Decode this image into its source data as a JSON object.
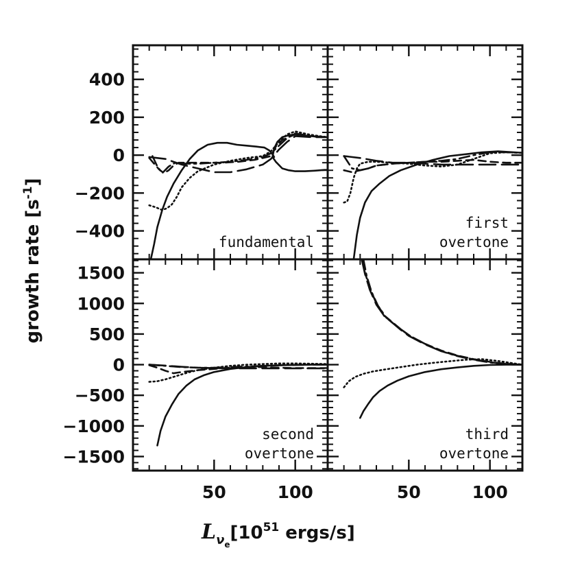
{
  "figure": {
    "ylabel_main": "growth rate ",
    "ylabel_unit": "[s",
    "ylabel_sup": "-1",
    "ylabel_close": "]",
    "xlabel_sym": "L",
    "xlabel_sub": "ν",
    "xlabel_subsub": "e",
    "xlabel_bracket": "[10",
    "xlabel_sup": "51",
    "xlabel_unit": " ergs/s]"
  },
  "chart_data": [
    {
      "type": "line",
      "title": "fundamental",
      "panel": "top-left",
      "xlim": [
        0,
        120
      ],
      "ylim": [
        -550,
        580
      ],
      "yticks": [
        400,
        200,
        0,
        -200,
        -400
      ],
      "ytick_labels": [
        "400",
        "200",
        "0",
        "−200",
        "−400"
      ],
      "xticks": [
        50,
        100
      ],
      "xtick_labels": [],
      "label_lines": [
        "fundamental"
      ],
      "series": [
        {
          "name": "solid",
          "style": "solid",
          "x": [
            11,
            13,
            15,
            18,
            21,
            25,
            30,
            35,
            40,
            46,
            52,
            58,
            64,
            70,
            76,
            81,
            84,
            86,
            87
          ],
          "y": [
            -550,
            -470,
            -380,
            -290,
            -220,
            -150,
            -80,
            -20,
            25,
            55,
            65,
            65,
            55,
            50,
            45,
            40,
            25,
            5,
            -10
          ]
        },
        {
          "name": "solid-branch-a",
          "style": "solid",
          "x": [
            86,
            87,
            89,
            92,
            96,
            100,
            104,
            110,
            116,
            120
          ],
          "y": [
            -10,
            35,
            70,
            95,
            105,
            110,
            105,
            100,
            95,
            95
          ]
        },
        {
          "name": "solid-branch-b",
          "style": "solid",
          "x": [
            86,
            88,
            92,
            96,
            100,
            106,
            112,
            118,
            120
          ],
          "y": [
            -10,
            -35,
            -70,
            -80,
            -85,
            -85,
            -82,
            -78,
            -78
          ]
        },
        {
          "name": "dashed",
          "style": "dashed",
          "x": [
            10,
            13,
            16,
            19,
            22,
            25,
            28,
            30,
            35,
            45,
            55,
            65,
            75,
            80,
            85,
            88,
            92,
            100,
            110,
            120
          ],
          "y": [
            -15,
            -45,
            -75,
            -95,
            -80,
            -55,
            -40,
            -40,
            -40,
            -40,
            -40,
            -35,
            -25,
            -15,
            -5,
            45,
            80,
            110,
            100,
            95
          ]
        },
        {
          "name": "long-dashed",
          "style": "longdash",
          "x": [
            10,
            20,
            30,
            40,
            50,
            60,
            70,
            80,
            85,
            90,
            95,
            100,
            110,
            120
          ],
          "y": [
            -10,
            -20,
            -50,
            -70,
            -90,
            -90,
            -75,
            -50,
            -20,
            30,
            70,
            100,
            95,
            95
          ]
        },
        {
          "name": "dash-dot",
          "style": "dashdot",
          "x": [
            12,
            15,
            18,
            22,
            26,
            30,
            40,
            50,
            60,
            70,
            80,
            85,
            90,
            95,
            100,
            110,
            120
          ],
          "y": [
            -5,
            -60,
            -95,
            -60,
            -40,
            -45,
            -45,
            -40,
            -35,
            -25,
            -10,
            10,
            50,
            90,
            115,
            100,
            95
          ]
        },
        {
          "name": "dotted",
          "style": "dotted",
          "x": [
            10,
            14,
            18,
            21,
            24,
            27,
            30,
            35,
            40,
            50,
            60,
            70,
            80,
            85,
            90,
            95,
            100,
            108,
            115,
            120
          ],
          "y": [
            -265,
            -275,
            -290,
            -280,
            -260,
            -220,
            -170,
            -120,
            -85,
            -50,
            -30,
            -15,
            -5,
            20,
            70,
            110,
            125,
            110,
            100,
            95
          ]
        }
      ]
    },
    {
      "type": "line",
      "title": "first overtone",
      "panel": "top-right",
      "xlim": [
        0,
        120
      ],
      "ylim": [
        -550,
        580
      ],
      "yticks": [
        400,
        200,
        0,
        -200,
        -400
      ],
      "ytick_labels": [],
      "xticks": [
        50,
        100
      ],
      "xtick_labels": [],
      "label_lines": [
        "first",
        "overtone"
      ],
      "series": [
        {
          "name": "solid",
          "style": "solid",
          "x": [
            16,
            18,
            20,
            23,
            27,
            32,
            38,
            45,
            55,
            65,
            75,
            85,
            95,
            105,
            115,
            120
          ],
          "y": [
            -550,
            -420,
            -330,
            -250,
            -190,
            -150,
            -110,
            -80,
            -50,
            -25,
            -5,
            5,
            15,
            20,
            15,
            12
          ]
        },
        {
          "name": "dashed",
          "style": "dashed",
          "x": [
            10,
            15,
            20,
            25,
            30,
            40,
            50,
            60,
            70,
            80,
            90,
            100,
            110,
            120
          ],
          "y": [
            -80,
            -90,
            -80,
            -70,
            -55,
            -45,
            -40,
            -35,
            -35,
            -30,
            -25,
            -35,
            -40,
            -40
          ]
        },
        {
          "name": "long-dashed",
          "style": "longdash",
          "x": [
            10,
            20,
            30,
            40,
            50,
            60,
            70,
            80,
            90,
            100,
            110,
            120
          ],
          "y": [
            -5,
            -15,
            -30,
            -40,
            -40,
            -45,
            -50,
            -50,
            -50,
            -50,
            -50,
            -50
          ]
        },
        {
          "name": "dash-dot",
          "style": "dashdot",
          "x": [
            10,
            15,
            20,
            25,
            30,
            40,
            50,
            60,
            70,
            80,
            90,
            100,
            110,
            120
          ],
          "y": [
            -5,
            -70,
            -80,
            -70,
            -55,
            -45,
            -40,
            -35,
            -30,
            -20,
            0,
            15,
            15,
            12
          ]
        },
        {
          "name": "dotted",
          "style": "dotted",
          "x": [
            10,
            12,
            14,
            16,
            18,
            20,
            25,
            30,
            40,
            50,
            60,
            70,
            80,
            90,
            100,
            110,
            120
          ],
          "y": [
            -250,
            -245,
            -200,
            -120,
            -70,
            -45,
            -35,
            -35,
            -40,
            -45,
            -55,
            -60,
            -50,
            -20,
            10,
            15,
            12
          ]
        }
      ]
    },
    {
      "type": "line",
      "title": "second overtone",
      "panel": "bottom-left",
      "xlim": [
        0,
        120
      ],
      "ylim": [
        -1730,
        1720
      ],
      "yticks": [
        1500,
        1000,
        500,
        0,
        -500,
        -1000,
        -1500
      ],
      "ytick_labels": [
        "1500",
        "1000",
        "500",
        "0",
        "−500",
        "−1000",
        "−1500"
      ],
      "xticks": [
        50,
        100
      ],
      "xtick_labels": [
        "50",
        "100"
      ],
      "label_lines": [
        "second",
        "overtone"
      ],
      "series": [
        {
          "name": "solid",
          "style": "solid",
          "x": [
            15,
            17,
            20,
            24,
            28,
            33,
            38,
            44,
            50,
            60,
            70,
            80,
            90,
            100,
            110,
            120
          ],
          "y": [
            -1320,
            -1080,
            -850,
            -650,
            -480,
            -340,
            -240,
            -170,
            -120,
            -70,
            -40,
            -20,
            -10,
            -5,
            0,
            0
          ]
        },
        {
          "name": "dashed",
          "style": "dashed",
          "x": [
            10,
            15,
            20,
            25,
            30,
            40,
            50,
            60,
            70,
            80,
            90,
            100,
            110,
            120
          ],
          "y": [
            -10,
            -50,
            -100,
            -140,
            -120,
            -90,
            -70,
            -50,
            -40,
            -40,
            -50,
            -55,
            -55,
            -55
          ]
        },
        {
          "name": "long-dashed",
          "style": "longdash",
          "x": [
            10,
            20,
            30,
            40,
            50,
            60,
            70,
            80,
            90,
            100,
            110,
            120
          ],
          "y": [
            0,
            -15,
            -35,
            -50,
            -55,
            -60,
            -60,
            -60,
            -60,
            -60,
            -60,
            -60
          ]
        },
        {
          "name": "dash-dot",
          "style": "dashdot",
          "x": [
            10,
            20,
            30,
            40,
            50,
            60,
            70,
            80,
            90,
            100,
            110,
            120
          ],
          "y": [
            0,
            -20,
            -40,
            -50,
            -50,
            -40,
            -30,
            -20,
            -10,
            -5,
            0,
            0
          ]
        },
        {
          "name": "dotted",
          "style": "dotted",
          "x": [
            10,
            15,
            20,
            25,
            30,
            35,
            40,
            50,
            60,
            70,
            80,
            90,
            100,
            110,
            120
          ],
          "y": [
            -280,
            -270,
            -240,
            -200,
            -160,
            -120,
            -90,
            -50,
            -20,
            0,
            10,
            20,
            20,
            15,
            10
          ]
        }
      ]
    },
    {
      "type": "line",
      "title": "third overtone",
      "panel": "bottom-right",
      "xlim": [
        0,
        120
      ],
      "ylim": [
        -1730,
        1720
      ],
      "yticks": [
        1500,
        1000,
        500,
        0,
        -500,
        -1000,
        -1500
      ],
      "ytick_labels": [],
      "xticks": [
        50,
        100
      ],
      "xtick_labels": [
        "50",
        "100"
      ],
      "label_lines": [
        "third",
        "overtone"
      ],
      "series": [
        {
          "name": "solid",
          "style": "solid",
          "x": [
            20,
            22,
            25,
            28,
            32,
            37,
            43,
            50,
            60,
            70,
            80,
            90,
            100,
            110,
            120
          ],
          "y": [
            -870,
            -760,
            -640,
            -530,
            -430,
            -340,
            -260,
            -190,
            -120,
            -75,
            -45,
            -20,
            -5,
            0,
            0
          ]
        },
        {
          "name": "dashed",
          "style": "dashed",
          "x": [
            21,
            23,
            26,
            30,
            35,
            40,
            45,
            50,
            55,
            60,
            70,
            80,
            90,
            100,
            110,
            120
          ],
          "y": [
            1720,
            1500,
            1250,
            1000,
            800,
            690,
            580,
            480,
            410,
            340,
            230,
            150,
            90,
            45,
            15,
            0
          ]
        },
        {
          "name": "long-dashed",
          "style": "longdash",
          "x": [
            21,
            23,
            26,
            30,
            35,
            40,
            45,
            50,
            55,
            60,
            70,
            80,
            90,
            100,
            110,
            120
          ],
          "y": [
            1720,
            1480,
            1220,
            980,
            790,
            680,
            570,
            470,
            400,
            330,
            220,
            145,
            85,
            40,
            12,
            0
          ]
        },
        {
          "name": "dash-dot",
          "style": "dashdot",
          "x": [
            22,
            24,
            27,
            31,
            36,
            41,
            46,
            51,
            56,
            61,
            70,
            80,
            90,
            100,
            110,
            120
          ],
          "y": [
            1720,
            1450,
            1190,
            960,
            770,
            660,
            560,
            465,
            395,
            325,
            220,
            140,
            80,
            35,
            10,
            0
          ]
        },
        {
          "name": "dotted",
          "style": "dotted",
          "x": [
            10,
            13,
            17,
            22,
            28,
            35,
            45,
            55,
            65,
            75,
            85,
            95,
            105,
            115,
            120
          ],
          "y": [
            -370,
            -270,
            -200,
            -150,
            -110,
            -80,
            -40,
            0,
            30,
            55,
            80,
            90,
            60,
            20,
            0
          ]
        }
      ]
    }
  ]
}
